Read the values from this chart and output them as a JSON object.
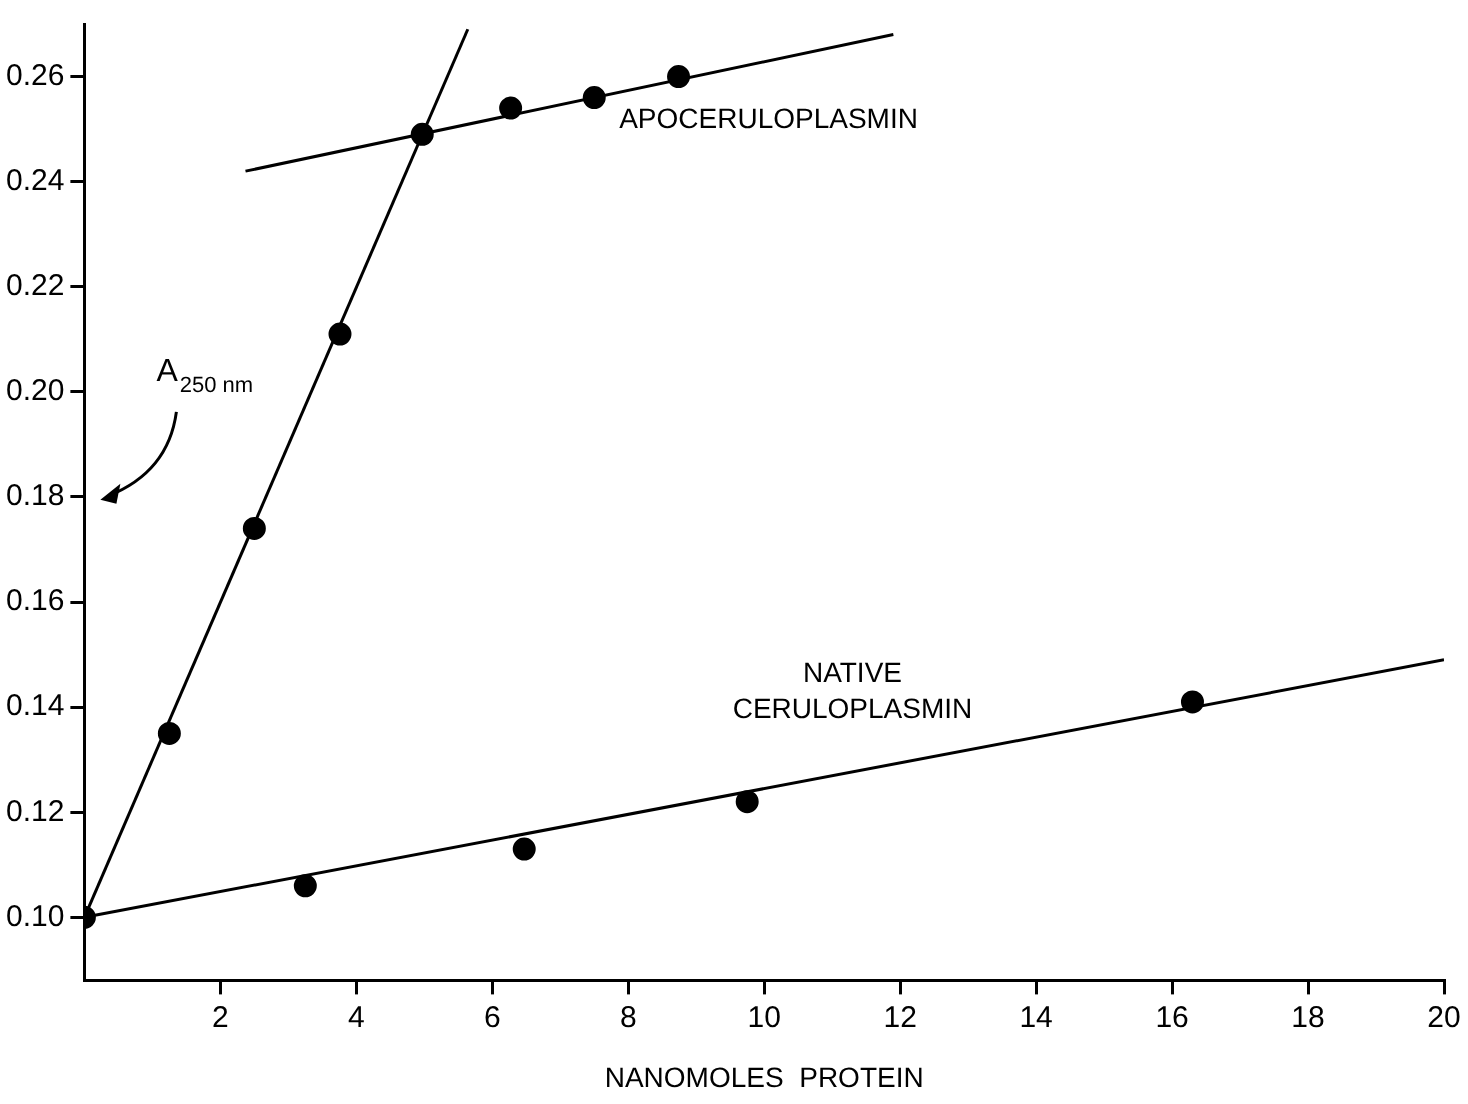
{
  "chart_data": {
    "type": "scatter",
    "xlabel": "NANOMOLES  PROTEIN",
    "annotations": [
      "A$_{250 nm}$"
    ],
    "xlim": [
      0,
      20
    ],
    "xticks": [
      2,
      4,
      6,
      8,
      10,
      12,
      14,
      16,
      18,
      20
    ],
    "ylim": [
      0.088,
      0.27
    ],
    "yticks": [
      {
        "value": 0.1,
        "label": "0.10"
      },
      {
        "value": 0.12,
        "label": "0.12"
      },
      {
        "value": 0.14,
        "label": "0.14"
      },
      {
        "value": 0.16,
        "label": "0.16"
      },
      {
        "value": 0.18,
        "label": "0.18"
      },
      {
        "value": 0.2,
        "label": "0.20"
      },
      {
        "value": 0.22,
        "label": "0.22"
      },
      {
        "value": 0.24,
        "label": "0.24"
      },
      {
        "value": 0.26,
        "label": "0.26"
      }
    ],
    "grid": false,
    "legend": false,
    "marker": "circle",
    "line_style": "solid",
    "series": [
      {
        "type": "scatter",
        "name": "APOCERULOPLASMIN",
        "color": "#000000",
        "x": [
          0,
          1.25,
          2.5,
          3.76,
          4.97,
          6.27,
          7.5,
          8.74
        ],
        "values": [
          0.1,
          0.135,
          0.174,
          0.211,
          0.249,
          0.254,
          0.256,
          0.26
        ]
      },
      {
        "type": "scatter",
        "name": "NATIVE CERULOPLASMIN",
        "color": "#000000",
        "x": [
          3.25,
          6.47,
          9.75,
          16.3
        ],
        "values": [
          0.106,
          0.113,
          0.122,
          0.141
        ]
      },
      {
        "type": "line",
        "marker": "none",
        "color": "#000000",
        "x": [
          0,
          5.64
        ],
        "values": [
          0.1,
          0.269
        ]
      },
      {
        "type": "line",
        "marker": "none",
        "color": "#000000",
        "x": [
          2.37,
          11.9
        ],
        "values": [
          0.242,
          0.268
        ]
      },
      {
        "type": "line",
        "marker": "none",
        "color": "#000000",
        "x": [
          0,
          20
        ],
        "values": [
          0.1,
          0.149
        ]
      }
    ]
  }
}
